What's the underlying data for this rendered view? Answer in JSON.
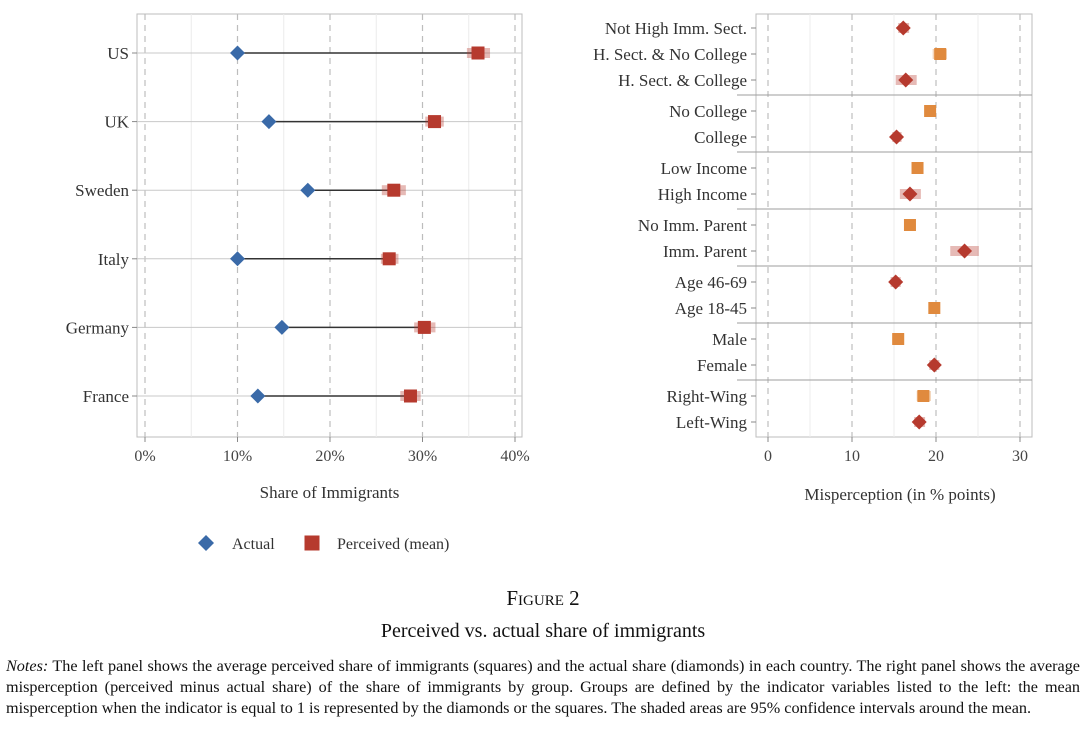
{
  "chart_data": [
    {
      "type": "dot-range",
      "xlabel": "Share of Immigrants",
      "xlim": [
        0,
        40
      ],
      "xticks": [
        "0%",
        "10%",
        "20%",
        "30%",
        "40%"
      ],
      "grid": true,
      "categories": [
        "US",
        "UK",
        "Sweden",
        "Italy",
        "Germany",
        "France"
      ],
      "series": [
        {
          "name": "Actual",
          "marker": "diamond",
          "color": "#3a6aa8",
          "values": [
            10.0,
            13.4,
            17.6,
            10.0,
            14.8,
            12.2
          ]
        },
        {
          "name": "Perceived (mean)",
          "marker": "square",
          "color": "#b63a2e",
          "values": [
            36.0,
            31.3,
            26.9,
            26.4,
            30.2,
            28.7
          ],
          "ci": [
            [
              34.8,
              37.3
            ],
            [
              30.3,
              32.3
            ],
            [
              25.6,
              28.2
            ],
            [
              25.5,
              27.4
            ],
            [
              29.1,
              31.4
            ],
            [
              27.6,
              29.8
            ]
          ]
        }
      ],
      "legend": "bottom"
    },
    {
      "type": "dot-ci",
      "xlabel": "Misperception (in % points)",
      "xlim": [
        0,
        30
      ],
      "xticks": [
        "0",
        "10",
        "20",
        "30"
      ],
      "grid": true,
      "groups": [
        [
          {
            "label": "Not High Imm. Sect.",
            "value": 16.1,
            "ci": [
              15.5,
              16.8
            ],
            "marker": "diamond",
            "color": "#b63a2e"
          },
          {
            "label": "H. Sect. & No College",
            "value": 20.5,
            "ci": [
              19.6,
              21.3
            ],
            "marker": "square",
            "color": "#e08a3e"
          },
          {
            "label": "H. Sect. & College",
            "value": 16.4,
            "ci": [
              15.2,
              17.7
            ],
            "marker": "diamond",
            "color": "#b63a2e"
          }
        ],
        [
          {
            "label": "No College",
            "value": 19.3,
            "ci": [
              18.9,
              19.8
            ],
            "marker": "square",
            "color": "#e08a3e"
          },
          {
            "label": "College",
            "value": 15.3,
            "ci": [
              14.8,
              15.9
            ],
            "marker": "diamond",
            "color": "#b63a2e"
          }
        ],
        [
          {
            "label": "Low Income",
            "value": 17.8,
            "ci": [
              17.4,
              18.3
            ],
            "marker": "square",
            "color": "#e08a3e"
          },
          {
            "label": "High Income",
            "value": 16.9,
            "ci": [
              15.7,
              18.2
            ],
            "marker": "diamond",
            "color": "#b63a2e"
          }
        ],
        [
          {
            "label": "No Imm. Parent",
            "value": 16.9,
            "ci": [
              16.5,
              17.4
            ],
            "marker": "square",
            "color": "#e08a3e"
          },
          {
            "label": "Imm. Parent",
            "value": 23.4,
            "ci": [
              21.7,
              25.1
            ],
            "marker": "diamond",
            "color": "#b63a2e"
          }
        ],
        [
          {
            "label": "Age 46-69",
            "value": 15.2,
            "ci": [
              14.6,
              15.8
            ],
            "marker": "diamond",
            "color": "#b63a2e"
          },
          {
            "label": "Age 18-45",
            "value": 19.8,
            "ci": [
              19.3,
              20.3
            ],
            "marker": "square",
            "color": "#e08a3e"
          }
        ],
        [
          {
            "label": "Male",
            "value": 15.5,
            "ci": [
              14.8,
              16.2
            ],
            "marker": "square",
            "color": "#e08a3e"
          },
          {
            "label": "Female",
            "value": 19.8,
            "ci": [
              19.2,
              20.4
            ],
            "marker": "diamond",
            "color": "#b63a2e"
          }
        ],
        [
          {
            "label": "Right-Wing",
            "value": 18.5,
            "ci": [
              17.7,
              19.4
            ],
            "marker": "square",
            "color": "#e08a3e"
          },
          {
            "label": "Left-Wing",
            "value": 18.0,
            "ci": [
              17.4,
              18.7
            ],
            "marker": "diamond",
            "color": "#b63a2e"
          }
        ]
      ]
    }
  ],
  "caption": {
    "figure": "Figure 2",
    "title": "Perceived vs. actual share of immigrants",
    "notes_label": "Notes:",
    "notes_text": " The left panel shows the average perceived share of immigrants (squares) and the actual share (diamonds) in each country. The right panel shows the average misperception (perceived minus actual share) of the share of immigrants by group. Groups are defined by the indicator variables listed to the left: the mean misperception when the indicator is equal to 1 is represented by the diamonds or the squares. The shaded areas are 95% confidence intervals around the mean."
  }
}
